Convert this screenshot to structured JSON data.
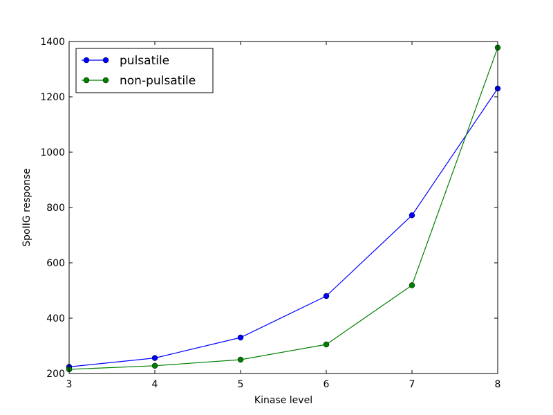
{
  "chart_data": {
    "type": "line",
    "title": "",
    "xlabel": "Kinase level",
    "ylabel": "SpoIIG response",
    "xlim": [
      3,
      8
    ],
    "ylim": [
      200,
      1400
    ],
    "xticks": [
      "3",
      "4",
      "5",
      "6",
      "7",
      "8"
    ],
    "yticks": [
      "200",
      "400",
      "600",
      "800",
      "1000",
      "1200",
      "1400"
    ],
    "grid": false,
    "legend_position": "top-left",
    "x": [
      3,
      4,
      5,
      6,
      7,
      8
    ],
    "series": [
      {
        "name": "pulsatile",
        "color": "#0000ff",
        "values": [
          224,
          256,
          330,
          480,
          772,
          1230
        ]
      },
      {
        "name": "non-pulsatile",
        "color": "#007f00",
        "values": [
          215,
          228,
          250,
          305,
          519,
          1378
        ]
      }
    ]
  }
}
